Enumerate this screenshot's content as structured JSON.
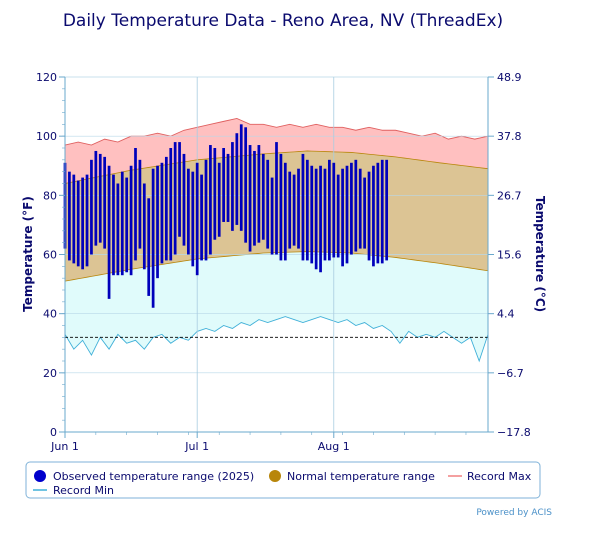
{
  "chart_data": {
    "type": "bar",
    "title": "Daily Temperature Data - Reno Area, NV (ThreadEx)",
    "ylabel_left": "Temperature (°F)",
    "ylabel_right": "Temperature (°C)",
    "ylim": [
      0,
      120
    ],
    "y_ticks": [
      0,
      20,
      40,
      60,
      80,
      100,
      120
    ],
    "y_ticks_right": [
      {
        "value": 0,
        "label": "−17.8"
      },
      {
        "value": 20,
        "label": "−6.7"
      },
      {
        "value": 40,
        "label": "4.4"
      },
      {
        "value": 60,
        "label": "15.6"
      },
      {
        "value": 80,
        "label": "26.7"
      },
      {
        "value": 100,
        "label": "37.8"
      },
      {
        "value": 120,
        "label": "48.9"
      }
    ],
    "x_ticks": [
      {
        "day": 1,
        "label": "Jun 1"
      },
      {
        "day": 31,
        "label": "Jul 1"
      },
      {
        "day": 62,
        "label": "Aug 1"
      }
    ],
    "x_range": [
      1,
      97
    ],
    "dashed_line_value": 32,
    "grid": true,
    "legend_position": "bottom",
    "legend": [
      {
        "key": "observed",
        "label": "Observed temperature range (2025)",
        "color": "#0000cc"
      },
      {
        "key": "normal",
        "label": "Normal temperature range",
        "color": "#b8860b"
      },
      {
        "key": "record_max",
        "label": "Record Max",
        "color": "#f08080"
      },
      {
        "key": "record_min",
        "label": "Record Min",
        "color": "#40b0d8"
      }
    ],
    "observed": {
      "days": [
        1,
        2,
        3,
        4,
        5,
        6,
        7,
        8,
        9,
        10,
        11,
        12,
        13,
        14,
        15,
        16,
        17,
        18,
        19,
        20,
        21,
        22,
        23,
        24,
        25,
        26,
        27,
        28,
        29,
        30,
        31,
        32,
        33,
        34,
        35,
        36,
        37,
        38,
        39,
        40,
        41,
        42,
        43,
        44,
        45,
        46,
        47,
        48,
        49,
        50,
        51,
        52,
        53,
        54,
        55,
        56,
        57,
        58,
        59,
        60,
        61,
        62,
        63,
        64,
        65,
        66,
        67,
        68,
        69,
        70,
        71,
        72,
        73,
        74
      ],
      "high": [
        91,
        88,
        87,
        85,
        86,
        87,
        92,
        95,
        94,
        93,
        90,
        87,
        84,
        88,
        86,
        90,
        96,
        92,
        84,
        79,
        89,
        90,
        91,
        93,
        96,
        98,
        98,
        94,
        89,
        88,
        91,
        87,
        92,
        97,
        96,
        91,
        96,
        94,
        98,
        101,
        104,
        103,
        97,
        95,
        97,
        94,
        92,
        86,
        98,
        94,
        91,
        88,
        87,
        89,
        94,
        92,
        90,
        89,
        90,
        89,
        92,
        91,
        87,
        89,
        90,
        91,
        92,
        89,
        86,
        88,
        90,
        91,
        92,
        92
      ],
      "low": [
        62,
        58,
        57,
        56,
        55,
        56,
        60,
        63,
        64,
        62,
        45,
        53,
        53,
        53,
        54,
        53,
        58,
        62,
        55,
        46,
        42,
        52,
        57,
        58,
        58,
        60,
        66,
        63,
        60,
        56,
        53,
        58,
        58,
        60,
        65,
        66,
        71,
        71,
        68,
        70,
        68,
        64,
        61,
        63,
        64,
        65,
        62,
        60,
        60,
        58,
        58,
        62,
        63,
        62,
        58,
        58,
        57,
        55,
        54,
        58,
        58,
        59,
        59,
        56,
        57,
        60,
        61,
        62,
        62,
        58,
        56,
        57,
        57,
        58
      ]
    },
    "normal_range": {
      "points": [
        {
          "day": 1,
          "high": 84,
          "low": 51
        },
        {
          "day": 16,
          "high": 88.5,
          "low": 55
        },
        {
          "day": 31,
          "high": 92,
          "low": 58.5
        },
        {
          "day": 46,
          "high": 94,
          "low": 60.5
        },
        {
          "day": 56,
          "high": 95,
          "low": 61
        },
        {
          "day": 66,
          "high": 94.5,
          "low": 60.5
        },
        {
          "day": 76,
          "high": 93,
          "low": 59
        },
        {
          "day": 86,
          "high": 91,
          "low": 57
        },
        {
          "day": 97,
          "high": 89,
          "low": 54.5
        }
      ]
    },
    "record_max": {
      "points": [
        {
          "day": 1,
          "value": 97
        },
        {
          "day": 4,
          "value": 98
        },
        {
          "day": 7,
          "value": 97
        },
        {
          "day": 10,
          "value": 99
        },
        {
          "day": 13,
          "value": 98
        },
        {
          "day": 16,
          "value": 100
        },
        {
          "day": 19,
          "value": 100
        },
        {
          "day": 22,
          "value": 101
        },
        {
          "day": 25,
          "value": 100
        },
        {
          "day": 28,
          "value": 102
        },
        {
          "day": 31,
          "value": 103
        },
        {
          "day": 34,
          "value": 104
        },
        {
          "day": 37,
          "value": 105
        },
        {
          "day": 40,
          "value": 106
        },
        {
          "day": 43,
          "value": 104
        },
        {
          "day": 46,
          "value": 104
        },
        {
          "day": 49,
          "value": 103
        },
        {
          "day": 52,
          "value": 104
        },
        {
          "day": 55,
          "value": 103
        },
        {
          "day": 58,
          "value": 104
        },
        {
          "day": 61,
          "value": 103
        },
        {
          "day": 64,
          "value": 103
        },
        {
          "day": 67,
          "value": 102
        },
        {
          "day": 70,
          "value": 103
        },
        {
          "day": 73,
          "value": 102
        },
        {
          "day": 76,
          "value": 102
        },
        {
          "day": 79,
          "value": 101
        },
        {
          "day": 82,
          "value": 100
        },
        {
          "day": 85,
          "value": 101
        },
        {
          "day": 88,
          "value": 99
        },
        {
          "day": 91,
          "value": 100
        },
        {
          "day": 94,
          "value": 99
        },
        {
          "day": 97,
          "value": 100
        }
      ]
    },
    "record_min": {
      "points": [
        {
          "day": 1,
          "value": 33
        },
        {
          "day": 3,
          "value": 28
        },
        {
          "day": 5,
          "value": 31
        },
        {
          "day": 7,
          "value": 26
        },
        {
          "day": 9,
          "value": 32
        },
        {
          "day": 11,
          "value": 28
        },
        {
          "day": 13,
          "value": 33
        },
        {
          "day": 15,
          "value": 30
        },
        {
          "day": 17,
          "value": 31
        },
        {
          "day": 19,
          "value": 28
        },
        {
          "day": 21,
          "value": 32
        },
        {
          "day": 23,
          "value": 33
        },
        {
          "day": 25,
          "value": 30
        },
        {
          "day": 27,
          "value": 32
        },
        {
          "day": 29,
          "value": 31
        },
        {
          "day": 31,
          "value": 34
        },
        {
          "day": 33,
          "value": 35
        },
        {
          "day": 35,
          "value": 34
        },
        {
          "day": 37,
          "value": 36
        },
        {
          "day": 39,
          "value": 35
        },
        {
          "day": 41,
          "value": 37
        },
        {
          "day": 43,
          "value": 36
        },
        {
          "day": 45,
          "value": 38
        },
        {
          "day": 47,
          "value": 37
        },
        {
          "day": 49,
          "value": 38
        },
        {
          "day": 51,
          "value": 39
        },
        {
          "day": 53,
          "value": 38
        },
        {
          "day": 55,
          "value": 37
        },
        {
          "day": 57,
          "value": 38
        },
        {
          "day": 59,
          "value": 39
        },
        {
          "day": 61,
          "value": 38
        },
        {
          "day": 63,
          "value": 37
        },
        {
          "day": 65,
          "value": 38
        },
        {
          "day": 67,
          "value": 36
        },
        {
          "day": 69,
          "value": 37
        },
        {
          "day": 71,
          "value": 35
        },
        {
          "day": 73,
          "value": 36
        },
        {
          "day": 75,
          "value": 34
        },
        {
          "day": 77,
          "value": 30
        },
        {
          "day": 79,
          "value": 34
        },
        {
          "day": 81,
          "value": 32
        },
        {
          "day": 83,
          "value": 33
        },
        {
          "day": 85,
          "value": 32
        },
        {
          "day": 87,
          "value": 34
        },
        {
          "day": 89,
          "value": 32
        },
        {
          "day": 91,
          "value": 30
        },
        {
          "day": 93,
          "value": 32
        },
        {
          "day": 95,
          "value": 24
        },
        {
          "day": 97,
          "value": 33
        }
      ]
    }
  },
  "credit": "Powered by ACIS"
}
